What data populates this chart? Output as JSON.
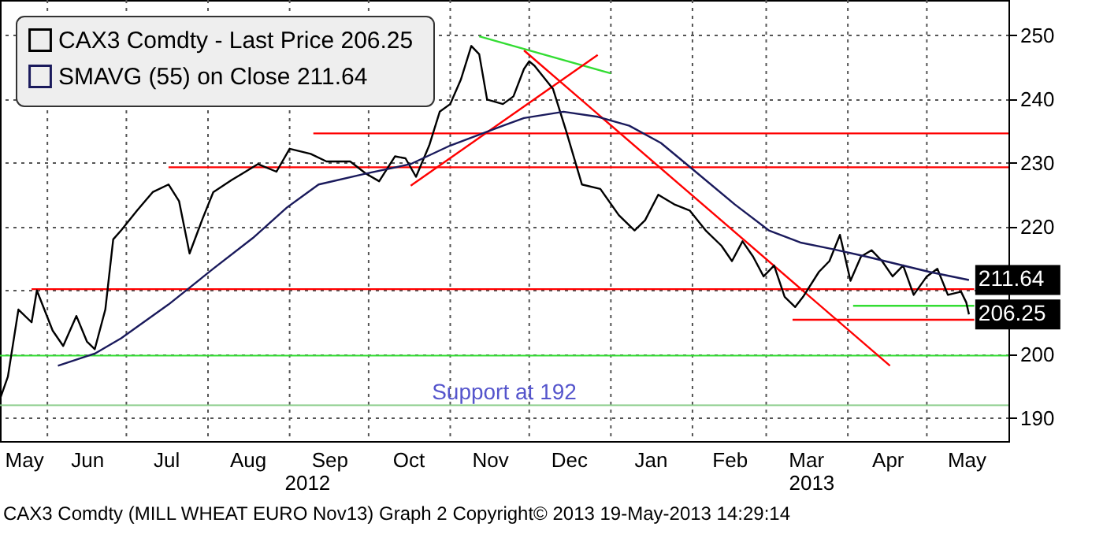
{
  "chart_data": {
    "type": "line",
    "legend": "top left",
    "grid": true,
    "marker": "none",
    "line_style": "solid",
    "xlim": [
      "2012-05-14",
      "2013-06-01"
    ],
    "ylim": [
      186.4,
      255.5
    ],
    "yticks": [
      190,
      200,
      {
        "value": 210,
        "label": null
      },
      220,
      230,
      240,
      250
    ],
    "xticks": [
      {
        "value": "2012-05-23",
        "label": "May"
      },
      {
        "value": "2012-06-01",
        "label": null
      },
      {
        "value": "2012-06-16",
        "label": "Jun"
      },
      {
        "value": "2012-07-01",
        "label": null
      },
      {
        "value": "2012-07-16",
        "label": "Jul"
      },
      {
        "value": "2012-08-01",
        "label": null
      },
      {
        "value": "2012-08-16",
        "label": "Aug"
      },
      {
        "value": "2012-09-01",
        "label": null
      },
      {
        "value": "2012-09-16",
        "label": "Sep"
      },
      {
        "value": "2012-10-01",
        "label": null
      },
      {
        "value": "2012-10-16",
        "label": "Oct"
      },
      {
        "value": "2012-11-01",
        "label": null
      },
      {
        "value": "2012-11-16",
        "label": "Nov"
      },
      {
        "value": "2012-12-01",
        "label": null
      },
      {
        "value": "2012-12-16",
        "label": "Dec"
      },
      {
        "value": "2013-01-01",
        "label": null
      },
      {
        "value": "2013-01-16",
        "label": "Jan"
      },
      {
        "value": "2013-02-01",
        "label": null
      },
      {
        "value": "2013-02-15",
        "label": "Feb"
      },
      {
        "value": "2013-03-01",
        "label": null
      },
      {
        "value": "2013-03-16",
        "label": "Mar"
      },
      {
        "value": "2013-04-01",
        "label": null
      },
      {
        "value": "2013-04-16",
        "label": "Apr"
      },
      {
        "value": "2013-05-01",
        "label": null
      },
      {
        "value": "2013-05-16",
        "label": "May"
      }
    ],
    "series": [
      {
        "name": "CAX3 Comdty - Last Price  206.25",
        "color": "#000000",
        "x": [
          "2012-05-14",
          "2012-05-17",
          "2012-05-21",
          "2012-05-26",
          "2012-05-28",
          "2012-06-03",
          "2012-06-07",
          "2012-06-12",
          "2012-06-16",
          "2012-06-19",
          "2012-06-23",
          "2012-06-26",
          "2012-06-29",
          "2012-07-05",
          "2012-07-11",
          "2012-07-17",
          "2012-07-21",
          "2012-07-25",
          "2012-07-30",
          "2012-08-03",
          "2012-08-10",
          "2012-08-14",
          "2012-08-20",
          "2012-08-27",
          "2012-09-01",
          "2012-09-09",
          "2012-09-15",
          "2012-09-24",
          "2012-09-30",
          "2012-10-05",
          "2012-10-11",
          "2012-10-15",
          "2012-10-19",
          "2012-10-24",
          "2012-10-28",
          "2012-11-01",
          "2012-11-05",
          "2012-11-09",
          "2012-11-12",
          "2012-11-15",
          "2012-11-21",
          "2012-11-25",
          "2012-11-29",
          "2012-12-01",
          "2012-12-03",
          "2012-12-10",
          "2012-12-15",
          "2012-12-21",
          "2012-12-28",
          "2013-01-04",
          "2013-01-10",
          "2013-01-14",
          "2013-01-19",
          "2013-01-25",
          "2013-01-31",
          "2013-02-06",
          "2013-02-12",
          "2013-02-16",
          "2013-02-20",
          "2013-02-24",
          "2013-02-28",
          "2013-03-04",
          "2013-03-08",
          "2013-03-12",
          "2013-03-15",
          "2013-03-21",
          "2013-03-25",
          "2013-03-29",
          "2013-04-02",
          "2013-04-06",
          "2013-04-10",
          "2013-04-14",
          "2013-04-18",
          "2013-04-22",
          "2013-04-26",
          "2013-05-01",
          "2013-05-05",
          "2013-05-09",
          "2013-05-14",
          "2013-05-16",
          "2013-05-17"
        ],
        "values": [
          193,
          196.5,
          207,
          205,
          210,
          203.7,
          201.3,
          206,
          202,
          200.8,
          207,
          218,
          219.4,
          222.5,
          225.4,
          226.6,
          224,
          215.8,
          221.3,
          225.4,
          227.3,
          228.3,
          229.8,
          228.6,
          232.2,
          231.4,
          230.2,
          230.2,
          228.3,
          227.1,
          231,
          230.7,
          227.8,
          232.7,
          238,
          239.2,
          243,
          248.3,
          247,
          239.9,
          239.2,
          240.4,
          244.7,
          245.9,
          245.2,
          241.6,
          235,
          226.6,
          225.9,
          221.8,
          219.4,
          221,
          225,
          223.5,
          222.5,
          219.4,
          217,
          214.6,
          217.7,
          215.3,
          212.2,
          213.9,
          209,
          207.4,
          209,
          212.9,
          214.6,
          218.7,
          211.5,
          215.3,
          216.3,
          214.6,
          212.2,
          213.9,
          209.3,
          212.2,
          213.4,
          209.3,
          209.8,
          208.1,
          206.25
        ],
        "value_labels": [
          null,
          null,
          null,
          null,
          null,
          null,
          null,
          null,
          null,
          null,
          null,
          null,
          null,
          null,
          null,
          null,
          null,
          null,
          null,
          null,
          null,
          null,
          null,
          null,
          null,
          null,
          null,
          null,
          null,
          null,
          null,
          null,
          null,
          null,
          null,
          null,
          null,
          null,
          null,
          null,
          null,
          null,
          null,
          null,
          null,
          null,
          null,
          null,
          null,
          null,
          null,
          null,
          null,
          null,
          null,
          null,
          null,
          null,
          null,
          null,
          null,
          null,
          null,
          null,
          null,
          null,
          null,
          null,
          null,
          null,
          null,
          null,
          null,
          null,
          null,
          null,
          null,
          null,
          null,
          null,
          "206.25"
        ]
      },
      {
        "name": "SMAVG (55) on Close      211.64",
        "color": "#1a1a5c",
        "x": [
          "2012-06-05",
          "2012-06-19",
          "2012-06-29",
          "2012-07-17",
          "2012-08-03",
          "2012-08-18",
          "2012-08-31",
          "2012-09-12",
          "2012-09-30",
          "2012-10-17",
          "2012-11-01",
          "2012-11-21",
          "2012-11-29",
          "2012-12-14",
          "2012-12-27",
          "2013-01-08",
          "2013-01-20",
          "2013-02-01",
          "2013-02-17",
          "2013-03-02",
          "2013-03-14",
          "2013-03-26",
          "2013-04-08",
          "2013-04-20",
          "2013-05-02",
          "2013-05-17"
        ],
        "values": [
          198.2,
          200.1,
          202.5,
          207.8,
          213.4,
          218.2,
          223,
          226.6,
          228.3,
          229.8,
          232.7,
          235.8,
          237,
          238,
          237.2,
          235.8,
          233.1,
          229,
          223.5,
          219.4,
          217.5,
          216.5,
          215.3,
          214.1,
          212.9,
          211.64
        ],
        "value_labels": [
          null,
          null,
          null,
          null,
          null,
          null,
          null,
          null,
          null,
          null,
          null,
          null,
          null,
          null,
          null,
          null,
          null,
          null,
          null,
          null,
          null,
          null,
          null,
          null,
          null,
          "211.64"
        ]
      },
      {
        "type": "line",
        "color": "#33dd33",
        "x": [
          "2012-11-12",
          "2013-01-01"
        ],
        "values": [
          249.8,
          244
        ]
      },
      {
        "type": "line",
        "color": "#ff0000",
        "x": [
          "2012-10-17",
          "2012-12-27"
        ],
        "values": [
          226.4,
          246.9
        ]
      },
      {
        "type": "line",
        "color": "#ff0000",
        "x": [
          "2012-11-29",
          "2013-04-17"
        ],
        "values": [
          247.6,
          198.2
        ]
      },
      {
        "type": "line",
        "color": "#ff0000",
        "x": [
          "2012-09-10",
          "2013-06-01"
        ],
        "values": [
          234.6,
          234.6
        ]
      },
      {
        "type": "line",
        "color": "#ff0000",
        "x": [
          "2012-07-17",
          "2013-06-01"
        ],
        "values": [
          229.3,
          229.3
        ]
      },
      {
        "type": "line",
        "color": "#ff0000",
        "x": [
          "2012-05-26",
          "2013-05-19"
        ],
        "values": [
          210.2,
          210.2
        ]
      },
      {
        "type": "line",
        "color": "#ff0000",
        "x": [
          "2013-03-11",
          "2013-05-19"
        ],
        "values": [
          205.4,
          205.4
        ]
      },
      {
        "type": "line",
        "color": "#33dd33",
        "x": [
          "2013-04-03",
          "2013-05-19"
        ],
        "values": [
          207.6,
          207.6
        ]
      }
    ],
    "ref_lines": [
      {
        "axis": "y",
        "value": 199.8,
        "color": "#33dd33"
      },
      {
        "axis": "y",
        "value": 192,
        "label": "Support at 192",
        "color": "#88cc88"
      }
    ],
    "annotations": [
      "2012",
      "2013",
      "CAX3 Comdty (MILL WHEAT EURO   Nov13) Graph 2  Copyright© 2013   19-May-2013 14:29:14"
    ]
  }
}
